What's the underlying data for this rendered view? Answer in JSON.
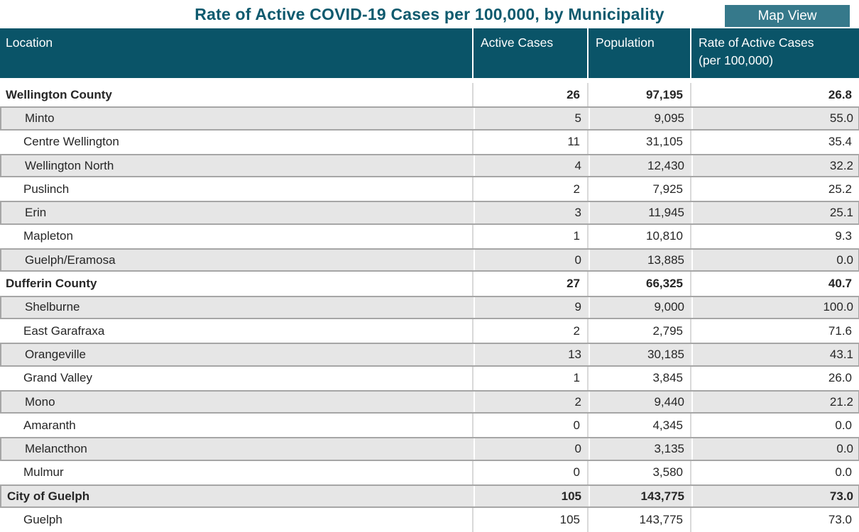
{
  "title": "Rate of Active COVID-19 Cases per 100,000, by Municipality",
  "map_view_button_label": "Map View",
  "colors": {
    "header_background": "#0a5468",
    "title_text": "#0e5a6e",
    "button_background": "#36798b",
    "zebra_row_background": "#e6e6e6",
    "row_border": "#a6a6a6",
    "body_text": "#262626"
  },
  "table": {
    "columns": [
      "Location",
      "Active Cases",
      "Population",
      "Rate of Active Cases\n(per 100,000)"
    ],
    "rows": [
      {
        "location": "Wellington County",
        "type": "county",
        "active_cases": "26",
        "population": "97,195",
        "rate": "26.8"
      },
      {
        "location": "Minto",
        "type": "municipality",
        "active_cases": "5",
        "population": "9,095",
        "rate": "55.0"
      },
      {
        "location": "Centre Wellington",
        "type": "municipality",
        "active_cases": "11",
        "population": "31,105",
        "rate": "35.4"
      },
      {
        "location": "Wellington North",
        "type": "municipality",
        "active_cases": "4",
        "population": "12,430",
        "rate": "32.2"
      },
      {
        "location": "Puslinch",
        "type": "municipality",
        "active_cases": "2",
        "population": "7,925",
        "rate": "25.2"
      },
      {
        "location": "Erin",
        "type": "municipality",
        "active_cases": "3",
        "population": "11,945",
        "rate": "25.1"
      },
      {
        "location": "Mapleton",
        "type": "municipality",
        "active_cases": "1",
        "population": "10,810",
        "rate": "9.3"
      },
      {
        "location": "Guelph/Eramosa",
        "type": "municipality",
        "active_cases": "0",
        "population": "13,885",
        "rate": "0.0"
      },
      {
        "location": "Dufferin County",
        "type": "county",
        "active_cases": "27",
        "population": "66,325",
        "rate": "40.7"
      },
      {
        "location": "Shelburne",
        "type": "municipality",
        "active_cases": "9",
        "population": "9,000",
        "rate": "100.0"
      },
      {
        "location": "East Garafraxa",
        "type": "municipality",
        "active_cases": "2",
        "population": "2,795",
        "rate": "71.6"
      },
      {
        "location": "Orangeville",
        "type": "municipality",
        "active_cases": "13",
        "population": "30,185",
        "rate": "43.1"
      },
      {
        "location": "Grand Valley",
        "type": "municipality",
        "active_cases": "1",
        "population": "3,845",
        "rate": "26.0"
      },
      {
        "location": "Mono",
        "type": "municipality",
        "active_cases": "2",
        "population": "9,440",
        "rate": "21.2"
      },
      {
        "location": "Amaranth",
        "type": "municipality",
        "active_cases": "0",
        "population": "4,345",
        "rate": "0.0"
      },
      {
        "location": "Melancthon",
        "type": "municipality",
        "active_cases": "0",
        "population": "3,135",
        "rate": "0.0"
      },
      {
        "location": "Mulmur",
        "type": "municipality",
        "active_cases": "0",
        "population": "3,580",
        "rate": "0.0"
      },
      {
        "location": "City of Guelph",
        "type": "county",
        "active_cases": "105",
        "population": "143,775",
        "rate": "73.0"
      },
      {
        "location": "Guelph",
        "type": "municipality",
        "active_cases": "105",
        "population": "143,775",
        "rate": "73.0"
      }
    ]
  }
}
